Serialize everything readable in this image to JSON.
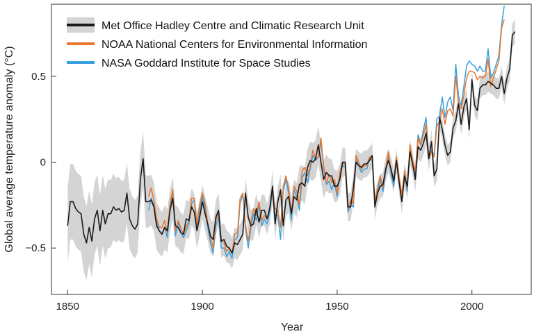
{
  "chart_data": {
    "type": "line",
    "title": "",
    "xlabel": "Year",
    "ylabel": "Global average temperature anomaly (°C)",
    "xlim": [
      1844,
      2022
    ],
    "ylim": [
      -0.77,
      0.92
    ],
    "x_ticks": [
      1850,
      1900,
      1950,
      2000
    ],
    "x_tick_labels": [
      "1850",
      "1900",
      "1950",
      "2000"
    ],
    "y_ticks": [
      -0.5,
      0,
      0.5
    ],
    "y_tick_labels": [
      "−0.5",
      "0",
      "0.5"
    ],
    "grid": false,
    "legend_position": "top-left",
    "uncertainty_band": {
      "years": [
        1850,
        1855,
        1860,
        1865,
        1870,
        1875,
        1880,
        1885,
        1890,
        1895,
        1900,
        1905,
        1910,
        1915,
        1920,
        1925,
        1930,
        1935,
        1940,
        1945,
        1950,
        1955,
        1960,
        1965,
        1970,
        1975,
        1980,
        1985,
        1990,
        1995,
        2000,
        2005,
        2010,
        2016
      ],
      "half_width": [
        0.22,
        0.22,
        0.21,
        0.2,
        0.18,
        0.17,
        0.15,
        0.13,
        0.12,
        0.11,
        0.1,
        0.1,
        0.09,
        0.09,
        0.09,
        0.09,
        0.09,
        0.1,
        0.11,
        0.11,
        0.09,
        0.08,
        0.08,
        0.07,
        0.07,
        0.07,
        0.07,
        0.07,
        0.06,
        0.06,
        0.06,
        0.06,
        0.06,
        0.07
      ],
      "color": "#d4d4d4"
    },
    "series": [
      {
        "name": "Met Office Hadley Centre and Climatic Research Unit",
        "color": "#1a1a1a",
        "start_year": 1850,
        "values": [
          -0.37,
          -0.23,
          -0.23,
          -0.27,
          -0.29,
          -0.3,
          -0.42,
          -0.47,
          -0.38,
          -0.46,
          -0.33,
          -0.28,
          -0.4,
          -0.28,
          -0.36,
          -0.3,
          -0.3,
          -0.26,
          -0.28,
          -0.27,
          -0.29,
          -0.28,
          -0.18,
          -0.33,
          -0.37,
          -0.39,
          -0.36,
          -0.1,
          0.02,
          -0.23,
          -0.23,
          -0.22,
          -0.26,
          -0.37,
          -0.4,
          -0.42,
          -0.38,
          -0.4,
          -0.28,
          -0.21,
          -0.37,
          -0.38,
          -0.41,
          -0.42,
          -0.33,
          -0.34,
          -0.26,
          -0.29,
          -0.4,
          -0.32,
          -0.23,
          -0.3,
          -0.36,
          -0.43,
          -0.45,
          -0.32,
          -0.28,
          -0.46,
          -0.45,
          -0.49,
          -0.5,
          -0.53,
          -0.47,
          -0.48,
          -0.45,
          -0.42,
          -0.18,
          -0.32,
          -0.37,
          -0.36,
          -0.27,
          -0.35,
          -0.28,
          -0.28,
          -0.33,
          -0.27,
          -0.14,
          -0.36,
          -0.23,
          -0.16,
          -0.37,
          -0.22,
          -0.2,
          -0.3,
          -0.2,
          -0.22,
          -0.13,
          -0.12,
          -0.14,
          -0.03,
          0.01,
          0.0,
          0.02,
          0.1,
          -0.0,
          -0.1,
          -0.06,
          -0.08,
          -0.08,
          -0.14,
          -0.14,
          -0.1,
          -0.0,
          0.0,
          -0.26,
          -0.26,
          -0.15,
          0.0,
          -0.02,
          -0.03,
          -0.01,
          -0.01,
          0.01,
          0.04,
          -0.26,
          -0.18,
          -0.14,
          -0.13,
          -0.04,
          0.01,
          -0.04,
          -0.11,
          0.01,
          -0.12,
          -0.23,
          -0.08,
          -0.14,
          0.06,
          -0.01,
          -0.1,
          0.09,
          0.07,
          0.11,
          0.17,
          0.02,
          0.12,
          -0.08,
          -0.04,
          0.26,
          0.19,
          0.1,
          0.04,
          0.06,
          0.2,
          0.24,
          0.34,
          0.22,
          0.32,
          0.37,
          0.19,
          0.48,
          0.33,
          0.3,
          0.43,
          0.45,
          0.45,
          0.47,
          0.46,
          0.45,
          0.43,
          0.43,
          0.5,
          0.4,
          0.49,
          0.54,
          0.74,
          0.76
        ]
      },
      {
        "name": "NOAA National Centers for Environmental Information",
        "color": "#e8762d",
        "start_year": 1880,
        "values": [
          -0.2,
          -0.15,
          -0.22,
          -0.33,
          -0.38,
          -0.38,
          -0.34,
          -0.41,
          -0.24,
          -0.16,
          -0.4,
          -0.34,
          -0.38,
          -0.42,
          -0.38,
          -0.34,
          -0.21,
          -0.21,
          -0.36,
          -0.25,
          -0.18,
          -0.24,
          -0.36,
          -0.44,
          -0.5,
          -0.34,
          -0.29,
          -0.46,
          -0.47,
          -0.52,
          -0.5,
          -0.53,
          -0.42,
          -0.41,
          -0.21,
          -0.18,
          -0.36,
          -0.46,
          -0.35,
          -0.27,
          -0.31,
          -0.23,
          -0.34,
          -0.31,
          -0.33,
          -0.26,
          -0.15,
          -0.27,
          -0.28,
          -0.38,
          -0.14,
          -0.08,
          -0.15,
          -0.3,
          -0.14,
          -0.17,
          -0.25,
          -0.05,
          -0.03,
          -0.08,
          -0.02,
          0.07,
          0.02,
          0.03,
          0.14,
          -0.02,
          -0.12,
          -0.07,
          -0.12,
          -0.1,
          -0.18,
          -0.06,
          0.0,
          -0.02,
          -0.27,
          -0.22,
          -0.24,
          0.04,
          0.0,
          -0.04,
          -0.02,
          -0.02,
          0.03,
          0.03,
          -0.23,
          -0.15,
          -0.08,
          -0.15,
          -0.04,
          0.06,
          -0.05,
          -0.11,
          0.03,
          -0.09,
          -0.19,
          -0.05,
          -0.15,
          0.1,
          0.01,
          -0.05,
          0.14,
          0.1,
          0.16,
          0.22,
          0.02,
          0.06,
          0.03,
          0.21,
          0.24,
          0.31,
          0.22,
          0.3,
          0.31,
          0.27,
          0.5,
          0.35,
          0.31,
          0.39,
          0.49,
          0.53,
          0.53,
          0.52,
          0.48,
          0.5,
          0.49,
          0.5,
          0.6,
          0.44,
          0.49,
          0.54,
          0.59,
          0.78,
          0.83
        ]
      },
      {
        "name": "NASA Goddard Institute for Space Studies",
        "color": "#3a9fdf",
        "start_year": 1880,
        "values": [
          -0.28,
          -0.21,
          -0.25,
          -0.35,
          -0.4,
          -0.42,
          -0.38,
          -0.44,
          -0.26,
          -0.18,
          -0.43,
          -0.35,
          -0.41,
          -0.44,
          -0.4,
          -0.36,
          -0.24,
          -0.22,
          -0.38,
          -0.28,
          -0.2,
          -0.27,
          -0.38,
          -0.47,
          -0.53,
          -0.37,
          -0.32,
          -0.5,
          -0.5,
          -0.55,
          -0.52,
          -0.56,
          -0.45,
          -0.44,
          -0.24,
          -0.19,
          -0.39,
          -0.5,
          -0.38,
          -0.3,
          -0.34,
          -0.25,
          -0.37,
          -0.33,
          -0.36,
          -0.29,
          -0.17,
          -0.31,
          -0.31,
          -0.45,
          -0.17,
          -0.1,
          -0.18,
          -0.34,
          -0.16,
          -0.2,
          -0.28,
          -0.09,
          -0.06,
          -0.12,
          -0.04,
          0.04,
          0.01,
          0.03,
          0.12,
          -0.03,
          -0.13,
          -0.11,
          -0.16,
          -0.12,
          -0.2,
          -0.08,
          -0.02,
          -0.03,
          -0.29,
          -0.25,
          -0.26,
          0.02,
          -0.02,
          -0.06,
          -0.04,
          -0.04,
          0.02,
          0.01,
          -0.25,
          -0.18,
          -0.1,
          -0.17,
          -0.06,
          0.04,
          -0.07,
          -0.14,
          0.01,
          -0.11,
          -0.22,
          -0.07,
          -0.17,
          0.09,
          0.0,
          -0.07,
          0.16,
          0.1,
          0.19,
          0.26,
          0.03,
          0.07,
          0.04,
          0.25,
          0.27,
          0.38,
          0.26,
          0.35,
          0.38,
          0.3,
          0.57,
          0.39,
          0.33,
          0.44,
          0.56,
          0.59,
          0.57,
          0.56,
          0.53,
          0.56,
          0.53,
          0.53,
          0.66,
          0.49,
          0.52,
          0.57,
          0.62,
          0.8,
          0.91
        ]
      }
    ]
  }
}
